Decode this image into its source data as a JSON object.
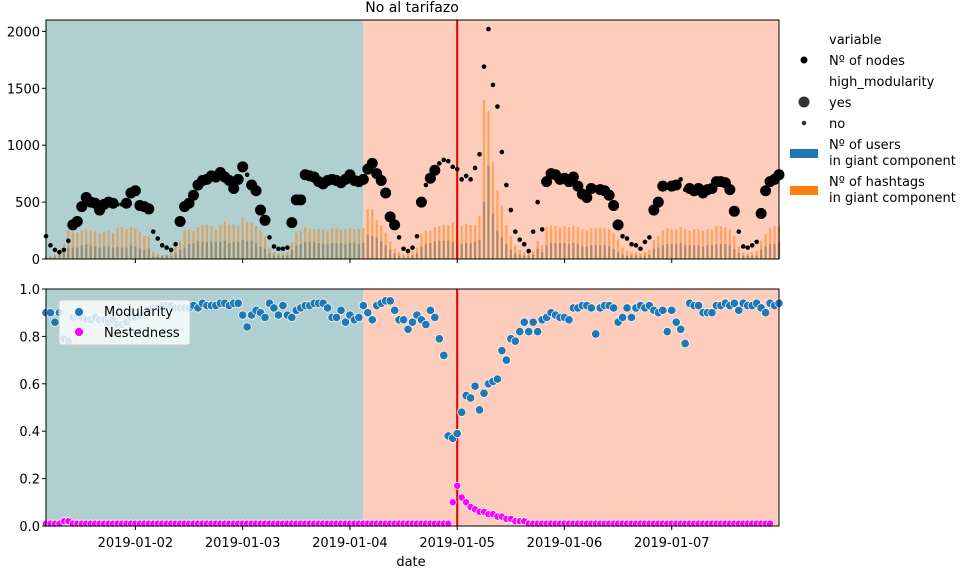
{
  "title": "No al tarifazo",
  "xlabel": "date",
  "xtick_labels": [
    "2019-01-02",
    "2019-01-03",
    "2019-01-04",
    "2019-01-05",
    "2019-01-06",
    "2019-01-07"
  ],
  "top_yticks": [
    "0",
    "500",
    "1000",
    "1500",
    "2000"
  ],
  "bottom_yticks": [
    "0.0",
    "0.2",
    "0.4",
    "0.6",
    "0.8",
    "1.0"
  ],
  "legend_top": {
    "variable_title": "variable",
    "nodes_label": "Nº of nodes",
    "modularity_title": "high_modularity",
    "yes_label": "yes",
    "no_label": "no",
    "users_label_1": "Nº of users",
    "users_label_2": "in giant component",
    "hashtags_label_1": "Nº of hashtags",
    "hashtags_label_2": "in giant component"
  },
  "legend_bottom": {
    "modularity_label": "Modularity",
    "nestedness_label": "Nestedness"
  },
  "colors": {
    "before_bg": "#b0cfd0",
    "after_bg": "#fdccbb",
    "users": "#1f77b4",
    "hashtags": "#ff7f0e",
    "nodes": "#000000",
    "modularity": "#1f77b4",
    "nestedness": "#ff00ff",
    "event_line": "#e00000"
  },
  "chart_data": [
    {
      "type": "scatter+bar",
      "title": "No al tarifazo",
      "x_unit": "days (2019-01-01 … 2019-01-08), hourly",
      "xlim": [
        "2019-01-01T04:00",
        "2019-01-08T00:00"
      ],
      "ylim": [
        0,
        2100
      ],
      "shaded_regions": [
        {
          "from": "2019-01-01T04:00",
          "to": "2019-01-04T03:00",
          "color": "before"
        },
        {
          "from": "2019-01-04T03:00",
          "to": "2019-01-08T00:00",
          "color": "after"
        }
      ],
      "event_line": "2019-01-05T00:00",
      "series_nodes": {
        "name": "Nº of nodes",
        "start": "2019-01-01T04:00",
        "step_hours": 1,
        "values": [
          200,
          120,
          80,
          60,
          80,
          160,
          300,
          330,
          460,
          540,
          500,
          490,
          430,
          480,
          500,
          490,
          480,
          480,
          490,
          580,
          600,
          470,
          460,
          440,
          240,
          180,
          120,
          100,
          80,
          130,
          330,
          460,
          490,
          560,
          650,
          690,
          700,
          730,
          720,
          760,
          720,
          690,
          620,
          700,
          810,
          740,
          650,
          600,
          430,
          340,
          190,
          110,
          90,
          90,
          100,
          320,
          520,
          520,
          740,
          730,
          720,
          680,
          660,
          690,
          700,
          690,
          670,
          700,
          740,
          690,
          680,
          700,
          790,
          840,
          750,
          690,
          580,
          370,
          300,
          190,
          90,
          70,
          100,
          200,
          500,
          650,
          710,
          780,
          840,
          870,
          860,
          810,
          790,
          700,
          730,
          700,
          800,
          920,
          1690,
          2020,
          1530,
          1340,
          940,
          650,
          430,
          240,
          170,
          130,
          70,
          240,
          500,
          260,
          680,
          750,
          740,
          700,
          710,
          680,
          720,
          640,
          570,
          540,
          620,
          630,
          610,
          600,
          560,
          470,
          300,
          200,
          180,
          130,
          120,
          90,
          150,
          190,
          430,
          500,
          640,
          650,
          640,
          650,
          700,
          610,
          620,
          600,
          620,
          580,
          610,
          620,
          680,
          680,
          670,
          610,
          420,
          240,
          110,
          100,
          120,
          150,
          400,
          600,
          680,
          700,
          740,
          650,
          640,
          620,
          660,
          700,
          720
        ]
      },
      "series_users": {
        "name": "Nº of users in giant component",
        "start": "2019-01-01T04:00",
        "step_hours": 1,
        "values": [
          10,
          15,
          20,
          40,
          60,
          100,
          100,
          100,
          120,
          130,
          120,
          110,
          100,
          110,
          110,
          100,
          110,
          100,
          100,
          120,
          110,
          90,
          80,
          90,
          20,
          20,
          30,
          30,
          20,
          50,
          80,
          100,
          130,
          140,
          160,
          150,
          150,
          150,
          150,
          150,
          160,
          140,
          150,
          150,
          170,
          160,
          160,
          140,
          110,
          90,
          50,
          30,
          30,
          30,
          30,
          80,
          120,
          130,
          150,
          150,
          150,
          140,
          130,
          130,
          140,
          140,
          140,
          130,
          140,
          140,
          130,
          140,
          210,
          200,
          190,
          160,
          120,
          80,
          50,
          30,
          20,
          20,
          30,
          50,
          110,
          130,
          140,
          150,
          160,
          160,
          160,
          150,
          140,
          130,
          140,
          140,
          150,
          170,
          500,
          820,
          400,
          250,
          190,
          130,
          80,
          50,
          40,
          30,
          30,
          40,
          90,
          60,
          120,
          140,
          140,
          140,
          140,
          130,
          140,
          130,
          110,
          110,
          120,
          120,
          120,
          120,
          110,
          90,
          60,
          40,
          30,
          30,
          30,
          20,
          30,
          40,
          90,
          100,
          120,
          130,
          130,
          130,
          140,
          120,
          120,
          120,
          120,
          110,
          120,
          120,
          130,
          130,
          130,
          120,
          90,
          50,
          30,
          30,
          30,
          30,
          80,
          110,
          130,
          130,
          140,
          130,
          130,
          120,
          130,
          140,
          140
        ]
      },
      "series_hashtags": {
        "name": "Nº of hashtags in giant component",
        "start": "2019-01-01T04:00",
        "step_hours": 1,
        "values": [
          30,
          30,
          40,
          80,
          130,
          250,
          240,
          230,
          250,
          260,
          250,
          240,
          230,
          240,
          250,
          230,
          270,
          280,
          260,
          280,
          270,
          240,
          200,
          200,
          60,
          40,
          30,
          40,
          60,
          110,
          160,
          250,
          260,
          250,
          280,
          300,
          300,
          290,
          260,
          300,
          330,
          300,
          300,
          290,
          360,
          330,
          320,
          290,
          250,
          200,
          100,
          60,
          50,
          50,
          60,
          150,
          230,
          250,
          280,
          270,
          260,
          260,
          260,
          250,
          270,
          270,
          260,
          260,
          270,
          260,
          260,
          270,
          440,
          440,
          340,
          300,
          230,
          150,
          90,
          60,
          40,
          50,
          70,
          100,
          220,
          250,
          250,
          280,
          290,
          300,
          300,
          320,
          300,
          290,
          310,
          300,
          300,
          380,
          1400,
          1300,
          850,
          600,
          470,
          300,
          200,
          120,
          80,
          60,
          50,
          70,
          160,
          120,
          280,
          300,
          290,
          280,
          290,
          280,
          290,
          280,
          260,
          250,
          270,
          270,
          270,
          270,
          260,
          230,
          170,
          100,
          70,
          60,
          60,
          50,
          60,
          80,
          170,
          200,
          250,
          270,
          260,
          260,
          280,
          260,
          250,
          260,
          260,
          250,
          260,
          260,
          290,
          290,
          280,
          260,
          200,
          110,
          60,
          50,
          60,
          70,
          160,
          220,
          270,
          290,
          290,
          270,
          270,
          250,
          270,
          290,
          290
        ]
      },
      "high_modularity": {
        "yes": "large markers",
        "no": "small markers"
      }
    },
    {
      "type": "scatter",
      "xlabel": "date",
      "ylim": [
        0,
        1.0
      ],
      "shaded_regions": [
        {
          "from": "2019-01-01T04:00",
          "to": "2019-01-04T03:00",
          "color": "before"
        },
        {
          "from": "2019-01-04T03:00",
          "to": "2019-01-08T00:00",
          "color": "after"
        }
      ],
      "event_line": "2019-01-05T00:00",
      "series": [
        {
          "name": "Modularity",
          "start": "2019-01-01T04:00",
          "step_hours": 1,
          "values": [
            0.9,
            0.9,
            0.86,
            0.9,
            0.79,
            0.78,
            0.88,
            0.89,
            0.88,
            0.87,
            0.87,
            0.88,
            0.87,
            0.87,
            0.86,
            0.87,
            0.85,
            0.85,
            0.86,
            0.88,
            0.88,
            0.89,
            0.9,
            0.91,
            0.92,
            0.92,
            0.93,
            0.93,
            0.93,
            0.92,
            0.92,
            0.92,
            0.92,
            0.93,
            0.92,
            0.94,
            0.93,
            0.93,
            0.93,
            0.94,
            0.94,
            0.93,
            0.94,
            0.94,
            0.89,
            0.84,
            0.89,
            0.91,
            0.9,
            0.88,
            0.94,
            0.92,
            0.89,
            0.93,
            0.89,
            0.88,
            0.91,
            0.92,
            0.93,
            0.93,
            0.94,
            0.94,
            0.94,
            0.92,
            0.88,
            0.88,
            0.91,
            0.86,
            0.89,
            0.87,
            0.88,
            0.93,
            0.9,
            0.87,
            0.93,
            0.94,
            0.95,
            0.95,
            0.91,
            0.87,
            0.87,
            0.83,
            0.86,
            0.89,
            0.87,
            0.85,
            0.91,
            0.88,
            0.79,
            0.72,
            0.38,
            0.37,
            0.39,
            0.48,
            0.55,
            0.54,
            0.59,
            0.49,
            0.56,
            0.6,
            0.61,
            0.62,
            0.74,
            0.7,
            0.79,
            0.78,
            0.82,
            0.86,
            0.82,
            0.86,
            0.82,
            0.87,
            0.88,
            0.9,
            0.89,
            0.88,
            0.88,
            0.87,
            0.92,
            0.92,
            0.93,
            0.93,
            0.92,
            0.81,
            0.92,
            0.93,
            0.93,
            0.92,
            0.86,
            0.88,
            0.92,
            0.88,
            0.92,
            0.93,
            0.92,
            0.93,
            0.91,
            0.9,
            0.91,
            0.82,
            0.91,
            0.86,
            0.83,
            0.77,
            0.94,
            0.93,
            0.93,
            0.9,
            0.9,
            0.9,
            0.93,
            0.93,
            0.94,
            0.93,
            0.94,
            0.91,
            0.94,
            0.93,
            0.93,
            0.94,
            0.92,
            0.9,
            0.94,
            0.93,
            0.94
          ]
        },
        {
          "name": "Nestedness",
          "start": "2019-01-01T04:00",
          "step_hours": 1,
          "values": [
            0.01,
            0.01,
            0.01,
            0.01,
            0.02,
            0.02,
            0.01,
            0.01,
            0.01,
            0.01,
            0.01,
            0.01,
            0.01,
            0.01,
            0.01,
            0.01,
            0.01,
            0.01,
            0.01,
            0.01,
            0.01,
            0.01,
            0.01,
            0.01,
            0.01,
            0.01,
            0.01,
            0.01,
            0.01,
            0.01,
            0.01,
            0.01,
            0.01,
            0.01,
            0.01,
            0.01,
            0.01,
            0.01,
            0.01,
            0.01,
            0.01,
            0.01,
            0.01,
            0.01,
            0.01,
            0.01,
            0.01,
            0.01,
            0.01,
            0.01,
            0.01,
            0.01,
            0.01,
            0.01,
            0.01,
            0.01,
            0.01,
            0.01,
            0.01,
            0.01,
            0.01,
            0.01,
            0.01,
            0.01,
            0.01,
            0.01,
            0.01,
            0.01,
            0.01,
            0.01,
            0.01,
            0.01,
            0.01,
            0.01,
            0.01,
            0.01,
            0.01,
            0.01,
            0.01,
            0.01,
            0.01,
            0.01,
            0.01,
            0.01,
            0.01,
            0.01,
            0.01,
            0.01,
            0.01,
            0.01,
            0.01,
            0.1,
            0.17,
            0.12,
            0.1,
            0.08,
            0.07,
            0.06,
            0.06,
            0.05,
            0.05,
            0.04,
            0.04,
            0.03,
            0.03,
            0.02,
            0.02,
            0.02,
            0.01,
            0.01,
            0.01,
            0.01,
            0.01,
            0.01,
            0.01,
            0.01,
            0.01,
            0.01,
            0.01,
            0.01,
            0.01,
            0.01,
            0.01,
            0.01,
            0.01,
            0.01,
            0.01,
            0.01,
            0.01,
            0.01,
            0.01,
            0.01,
            0.01,
            0.01,
            0.01,
            0.01,
            0.01,
            0.01,
            0.01,
            0.01,
            0.01,
            0.01,
            0.01,
            0.01,
            0.01,
            0.01,
            0.01,
            0.01,
            0.01,
            0.01,
            0.01,
            0.01,
            0.01,
            0.01,
            0.01,
            0.01,
            0.01,
            0.01,
            0.01,
            0.01,
            0.01,
            0.01,
            0.01
          ]
        }
      ]
    }
  ]
}
